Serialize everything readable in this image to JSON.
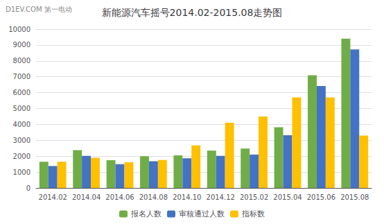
{
  "chart_data": {
    "type": "bar",
    "title": "新能源汽车摇号2014.02-2015.08走势图",
    "annotations": [
      "D1EV.COM 第一电动"
    ],
    "categories": [
      "2014.02",
      "2014.04",
      "2014.06",
      "2014.08",
      "2014.10",
      "2014.12",
      "2015.02",
      "2015.04",
      "2015.06",
      "2015.08"
    ],
    "series": [
      {
        "name": "报名人数",
        "color": "#70AD47",
        "values": [
          1650,
          2380,
          1750,
          2000,
          2050,
          2350,
          2480,
          3820,
          7100,
          9400
        ]
      },
      {
        "name": "审核通过人数",
        "color": "#4472C4",
        "values": [
          1380,
          2020,
          1500,
          1680,
          1870,
          2020,
          2100,
          3320,
          6420,
          8720
        ]
      },
      {
        "name": "指标数",
        "color": "#FFC000",
        "values": [
          1650,
          1900,
          1620,
          1760,
          2680,
          4100,
          4500,
          5700,
          5700,
          3300
        ]
      }
    ],
    "ylim": [
      0,
      10000
    ],
    "yticks": [
      0,
      1000,
      2000,
      3000,
      4000,
      5000,
      6000,
      7000,
      8000,
      9000,
      10000
    ],
    "grid": true,
    "legend": "bottom"
  }
}
